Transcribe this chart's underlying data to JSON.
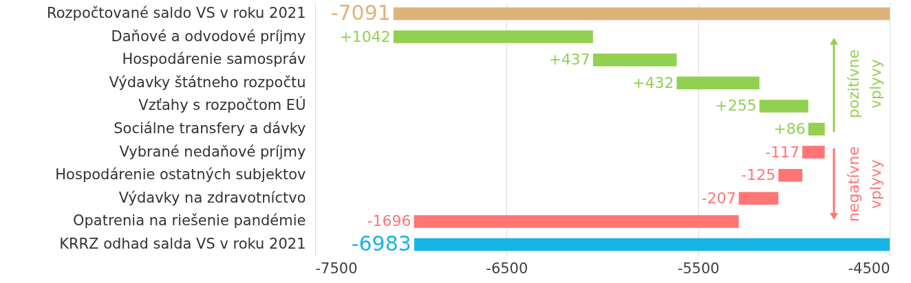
{
  "chart_data": {
    "type": "bar",
    "orientation": "horizontal",
    "categories": [
      "Rozpočtované saldo VS v roku 2021",
      "Daňové a odvodové príjmy",
      "Hospodárenie samospráv",
      "Výdavky štátneho rozpočtu",
      "Vzťahy s rozpočtom EÚ",
      "Sociálne transfery a dávky",
      "Vybrané nedaňové príjmy",
      "Hospodárenie ostatných subjektov",
      "Výdavky na zdravotníctvo",
      "Opatrenia na riešenie pandémie",
      "KRRZ odhad salda VS v roku 2021"
    ],
    "values": [
      -7091,
      1042,
      437,
      432,
      255,
      86,
      -117,
      -125,
      -207,
      -1696,
      -6983
    ],
    "base": [
      null,
      -7091,
      -6049,
      -5612,
      -5180,
      -4925,
      -4839,
      -4956,
      -5081,
      -5288,
      null
    ],
    "colors": [
      "#dcb47a",
      "#92d050",
      "#92d050",
      "#92d050",
      "#92d050",
      "#92d050",
      "#ff7575",
      "#ff7575",
      "#ff7575",
      "#ff7575",
      "#17b4e8"
    ],
    "value_labels": [
      "-7091",
      "+1042",
      "+437",
      "+432",
      "+255",
      "+86",
      "-117",
      "-125",
      "-207",
      "-1696",
      "-6983"
    ],
    "xlim": [
      -7500,
      -4500
    ],
    "xticks": [
      -7500,
      -6500,
      -5500,
      -4500
    ],
    "grid": "x",
    "annotations": [
      "pozitívne vplyvy",
      "negatívne vplyvy"
    ]
  }
}
